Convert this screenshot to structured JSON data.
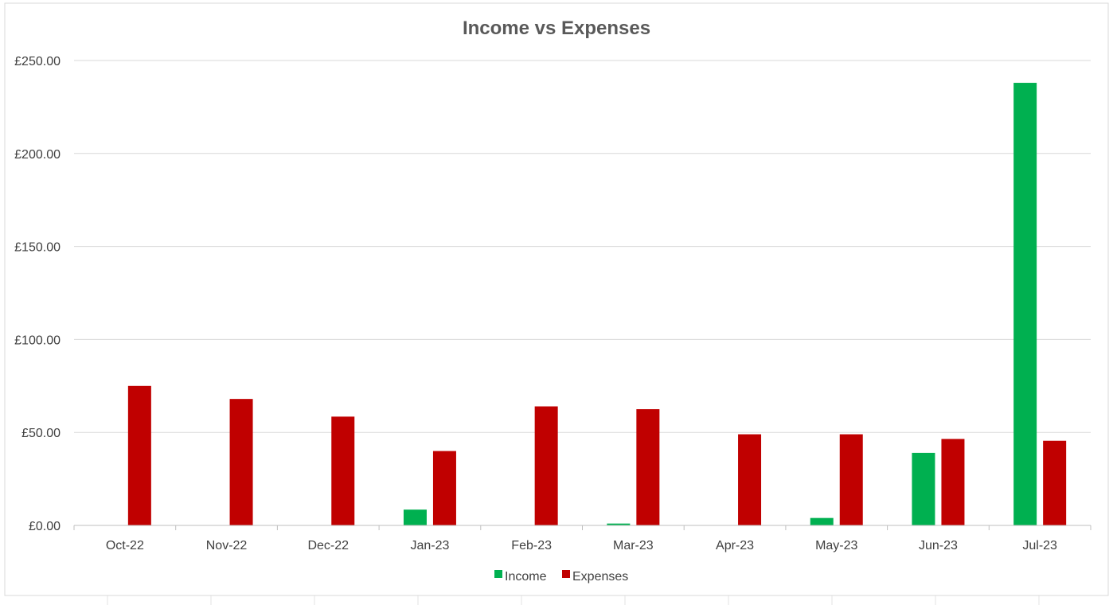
{
  "chart_data": {
    "type": "bar",
    "title": "Income vs Expenses",
    "xlabel": "",
    "ylabel": "",
    "categories": [
      "Oct-22",
      "Nov-22",
      "Dec-22",
      "Jan-23",
      "Feb-23",
      "Mar-23",
      "Apr-23",
      "May-23",
      "Jun-23",
      "Jul-23"
    ],
    "series": [
      {
        "name": "Income",
        "color": "#00B050",
        "values": [
          0,
          0,
          0,
          8.5,
          0,
          1,
          0,
          4,
          39,
          238
        ]
      },
      {
        "name": "Expenses",
        "color": "#C00000",
        "values": [
          75,
          68,
          58.5,
          40,
          64,
          62.5,
          49,
          49,
          46.5,
          45.5
        ]
      }
    ],
    "ylim": [
      0,
      250
    ],
    "yticks": [
      0,
      50,
      100,
      150,
      200,
      250
    ],
    "ytick_labels": [
      "£0.00",
      "£50.00",
      "£100.00",
      "£150.00",
      "£200.00",
      "£250.00"
    ],
    "grid": "horizontal",
    "legend_position": "bottom"
  }
}
